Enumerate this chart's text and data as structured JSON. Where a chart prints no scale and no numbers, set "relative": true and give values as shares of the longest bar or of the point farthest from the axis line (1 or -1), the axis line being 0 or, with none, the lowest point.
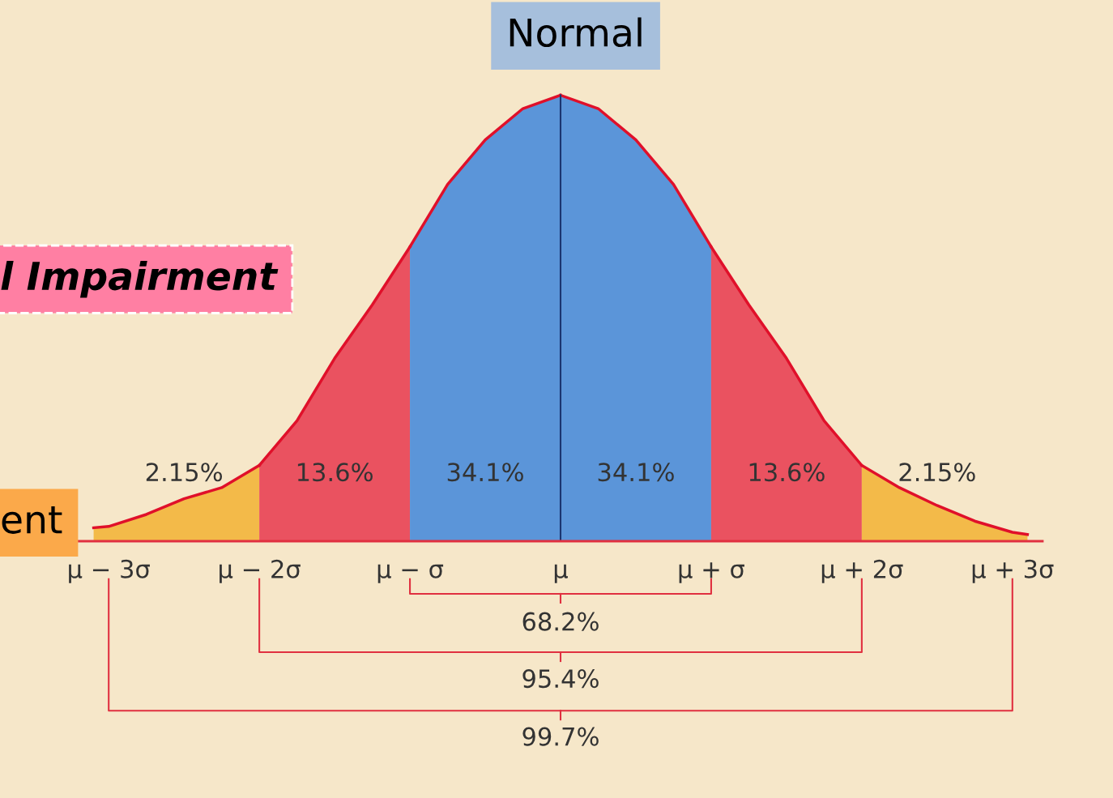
{
  "chart_data": {
    "type": "area",
    "relative": true,
    "xlim": [
      -3.2,
      3.2
    ],
    "xticks": [
      {
        "value": -3,
        "label": "μ − 3σ"
      },
      {
        "value": -2,
        "label": "μ − 2σ"
      },
      {
        "value": -1,
        "label": "μ − σ"
      },
      {
        "value": 0,
        "label": "μ"
      },
      {
        "value": 1,
        "label": "μ + σ"
      },
      {
        "value": 2,
        "label": "μ + 2σ"
      },
      {
        "value": 3,
        "label": "μ + 3σ"
      }
    ],
    "series": [
      {
        "color": "#f2b233",
        "x": [
          -3.1,
          -3.0,
          -2.75,
          -2.5,
          -2.25,
          -2.0
        ],
        "values": [
          0.03,
          0.033,
          0.06,
          0.095,
          0.12,
          0.17
        ]
      },
      {
        "color": "#e8374e",
        "x": [
          -2.0,
          -1.75,
          -1.5,
          -1.25,
          -1.0
        ],
        "values": [
          0.17,
          0.27,
          0.41,
          0.53,
          0.66
        ]
      },
      {
        "color": "#3f86dc",
        "x": [
          -1.0,
          -0.75,
          -0.5,
          -0.25,
          0
        ],
        "values": [
          0.66,
          0.8,
          0.9,
          0.97,
          1
        ]
      },
      {
        "color": "#3f86dc",
        "x": [
          0,
          0.25,
          0.5,
          0.75,
          1.0
        ],
        "values": [
          1,
          0.97,
          0.9,
          0.8,
          0.66
        ]
      },
      {
        "color": "#e8374e",
        "x": [
          1.0,
          1.25,
          1.5,
          1.75,
          2.0
        ],
        "values": [
          0.66,
          0.53,
          0.41,
          0.27,
          0.17
        ]
      },
      {
        "color": "#f2b233",
        "x": [
          2.0,
          2.25,
          2.5,
          2.75,
          3.0,
          3.1
        ],
        "values": [
          0.17,
          0.12,
          0.08,
          0.045,
          0.02,
          0.015
        ]
      }
    ],
    "ref_lines": [
      {
        "axis": "x",
        "value": 0,
        "color": "#1a3570"
      }
    ],
    "annotations": [
      "2.15%",
      "13.6%",
      "34.1%",
      "34.1%",
      "13.6%",
      "2.15%",
      "68.2%",
      "95.4%",
      "99.7%",
      "Normal",
      "l Impairment",
      "ent"
    ]
  }
}
